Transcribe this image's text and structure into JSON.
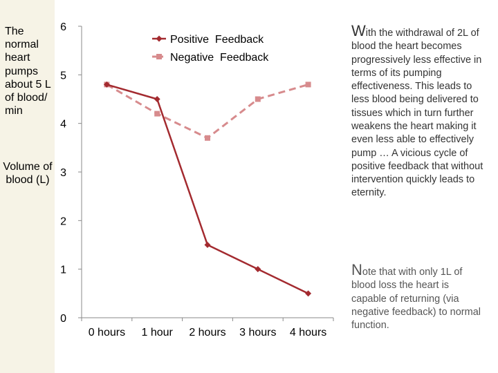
{
  "sidebar": {
    "caption": "The normal heart pumps about 5 L of blood/ min",
    "y_axis_label": "Volume of blood (L)"
  },
  "notes": {
    "note1_initial": "W",
    "note1_rest": "ith the withdrawal of 2L of blood the heart becomes progressively less effective in terms of its pumping effectiveness. This leads to less blood being delivered to tissues which in turn further weakens the heart making it even less able to effectively pump … A vicious cycle of positive feedback that without intervention quickly leads to eternity.",
    "note2_initial": "N",
    "note2_rest": "ote that with only 1L of blood loss the heart is capable of returning (via negative feedback) to normal function."
  },
  "chart_data": {
    "type": "line",
    "categories": [
      "0 hours",
      "1 hour",
      "2 hours",
      "3 hours",
      "4 hours"
    ],
    "ylim": [
      0,
      6
    ],
    "yticks": [
      0,
      1,
      2,
      3,
      4,
      5,
      6
    ],
    "legend_position": "top-right",
    "series": [
      {
        "name": "Positive  Feedback",
        "values": [
          4.8,
          4.5,
          1.5,
          1.0,
          0.5
        ],
        "color": "#a32a2f",
        "style": "solid",
        "marker": "diamond"
      },
      {
        "name": "Negative  Feedback",
        "values": [
          4.8,
          4.2,
          3.7,
          4.5,
          4.8
        ],
        "color": "#d78b8d",
        "style": "dashed",
        "marker": "square"
      }
    ]
  }
}
